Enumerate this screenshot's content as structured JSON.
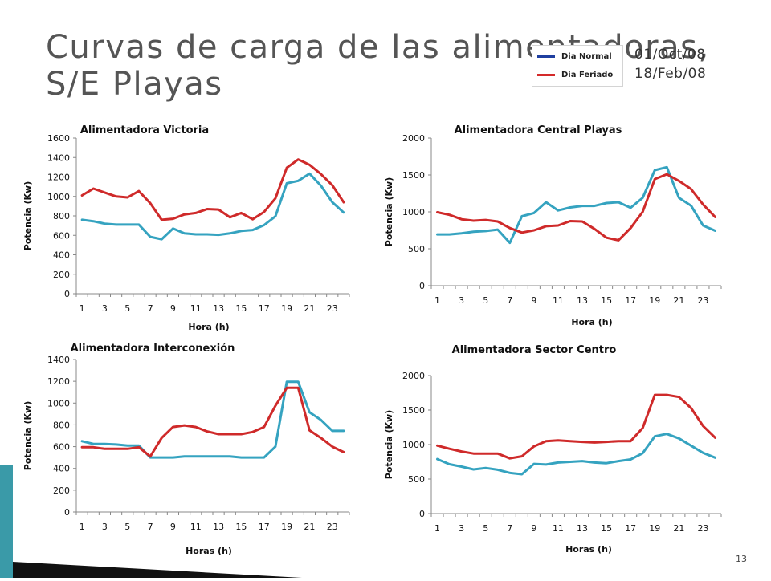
{
  "slide": {
    "title": "Curvas de carga de las alimentadoras, S/E Playas",
    "date_normal": "01/Oct/08",
    "date_holiday": "18/Feb/08",
    "page_number": "13"
  },
  "legend": {
    "items": [
      {
        "label": "Dia Normal",
        "color": "#1f3fa0"
      },
      {
        "label": "Dia Feriado",
        "color": "#d42a2a"
      }
    ]
  },
  "colors": {
    "normal_line": "#35a3c0",
    "holiday_line": "#cf2a2a",
    "deco_teal": "#3a9aa8",
    "deco_dark": "#111111"
  },
  "chart_data": [
    {
      "type": "line",
      "title": "Alimentadora Victoria",
      "xlabel": "Hora (h)",
      "ylabel": "Potencia (Kw)",
      "x": [
        1,
        2,
        3,
        4,
        5,
        6,
        7,
        8,
        9,
        10,
        11,
        12,
        13,
        14,
        15,
        16,
        17,
        18,
        19,
        20,
        21,
        22,
        23,
        24
      ],
      "x_tick_labels": [
        "1",
        "3",
        "5",
        "7",
        "9",
        "11",
        "13",
        "15",
        "17",
        "19",
        "21",
        "23"
      ],
      "ylim": [
        0,
        1600
      ],
      "y_ticks": [
        0,
        200,
        400,
        600,
        800,
        1000,
        1200,
        1400,
        1600
      ],
      "series": [
        {
          "values": [
            760,
            745,
            720,
            710,
            710,
            710,
            585,
            560,
            670,
            620,
            610,
            610,
            605,
            620,
            645,
            655,
            705,
            795,
            1135,
            1160,
            1235,
            1110,
            940,
            835
          ]
        },
        {
          "values": [
            1010,
            1080,
            1040,
            1000,
            990,
            1055,
            930,
            760,
            770,
            815,
            830,
            870,
            865,
            785,
            830,
            765,
            840,
            980,
            1295,
            1380,
            1325,
            1230,
            1115,
            940
          ]
        }
      ]
    },
    {
      "type": "line",
      "title": "Alimentadora Central Playas",
      "xlabel": "Hora (h)",
      "ylabel": "Potencia (Kw)",
      "x": [
        1,
        2,
        3,
        4,
        5,
        6,
        7,
        8,
        9,
        10,
        11,
        12,
        13,
        14,
        15,
        16,
        17,
        18,
        19,
        20,
        21,
        22,
        23,
        24
      ],
      "x_tick_labels": [
        "1",
        "3",
        "5",
        "7",
        "9",
        "11",
        "13",
        "15",
        "17",
        "19",
        "21",
        "23"
      ],
      "ylim": [
        0,
        2000
      ],
      "y_ticks": [
        0,
        500,
        1000,
        1500,
        2000
      ],
      "series": [
        {
          "values": [
            695,
            695,
            710,
            730,
            740,
            760,
            580,
            940,
            985,
            1130,
            1020,
            1060,
            1080,
            1080,
            1120,
            1130,
            1055,
            1190,
            1565,
            1605,
            1190,
            1085,
            815,
            745
          ]
        },
        {
          "values": [
            995,
            960,
            900,
            880,
            890,
            870,
            780,
            720,
            750,
            805,
            815,
            875,
            870,
            770,
            650,
            615,
            780,
            1000,
            1445,
            1510,
            1420,
            1310,
            1100,
            930
          ]
        }
      ]
    },
    {
      "type": "line",
      "title": "Alimentadora Interconexión",
      "xlabel": "Horas (h)",
      "ylabel": "Potencia (Kw)",
      "x": [
        1,
        2,
        3,
        4,
        5,
        6,
        7,
        8,
        9,
        10,
        11,
        12,
        13,
        14,
        15,
        16,
        17,
        18,
        19,
        20,
        21,
        22,
        23,
        24
      ],
      "x_tick_labels": [
        "1",
        "3",
        "5",
        "7",
        "9",
        "11",
        "13",
        "15",
        "17",
        "19",
        "21",
        "23"
      ],
      "ylim": [
        0,
        1400
      ],
      "y_ticks": [
        0,
        200,
        400,
        600,
        800,
        1000,
        1200,
        1400
      ],
      "series": [
        {
          "values": [
            650,
            625,
            625,
            620,
            610,
            610,
            500,
            500,
            500,
            510,
            510,
            510,
            510,
            510,
            500,
            500,
            500,
            600,
            1195,
            1195,
            915,
            845,
            745,
            745
          ]
        },
        {
          "values": [
            595,
            595,
            580,
            580,
            580,
            595,
            510,
            680,
            780,
            795,
            780,
            740,
            715,
            715,
            715,
            735,
            780,
            975,
            1140,
            1140,
            750,
            680,
            600,
            550
          ]
        }
      ]
    },
    {
      "type": "line",
      "title": "Alimentadora Sector Centro",
      "xlabel": "Horas (h)",
      "ylabel": "Potencia (Kw)",
      "x": [
        1,
        2,
        3,
        4,
        5,
        6,
        7,
        8,
        9,
        10,
        11,
        12,
        13,
        14,
        15,
        16,
        17,
        18,
        19,
        20,
        21,
        22,
        23,
        24
      ],
      "x_tick_labels": [
        "1",
        "3",
        "5",
        "7",
        "9",
        "11",
        "13",
        "15",
        "17",
        "19",
        "21",
        "23"
      ],
      "ylim": [
        0,
        2000
      ],
      "y_ticks": [
        0,
        500,
        1000,
        1500,
        2000
      ],
      "series": [
        {
          "values": [
            790,
            715,
            680,
            640,
            660,
            635,
            590,
            570,
            720,
            710,
            740,
            750,
            760,
            740,
            730,
            760,
            785,
            875,
            1120,
            1155,
            1090,
            985,
            880,
            810
          ]
        },
        {
          "values": [
            985,
            940,
            900,
            870,
            870,
            870,
            800,
            830,
            975,
            1050,
            1060,
            1050,
            1040,
            1030,
            1040,
            1050,
            1050,
            1240,
            1720,
            1720,
            1690,
            1530,
            1270,
            1100
          ]
        }
      ]
    }
  ]
}
